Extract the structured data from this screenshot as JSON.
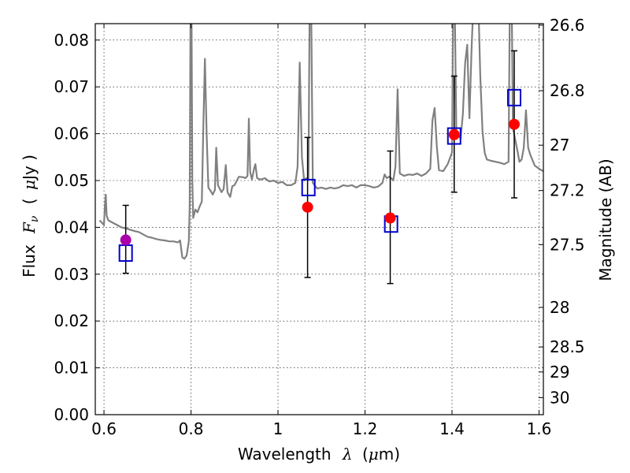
{
  "chart_data": {
    "type": "scatter",
    "xlabel": {
      "text": "Wavelength",
      "symbol": "λ",
      "unit": "(μm)",
      "unit_prefix": "(",
      "unit_mu": "μ",
      "unit_rest": "m)"
    },
    "ylabel": {
      "text": "Flux",
      "symbol": "F",
      "subscript": "ν",
      "unit_open": "(",
      "unit_mu": "μ",
      "unit_rest": "Jy )"
    },
    "y2label": "Magnitude (AB)",
    "xlim": [
      0.58,
      1.61
    ],
    "ylim": [
      0.0,
      0.0835
    ],
    "x_ticks": [
      0.6,
      0.8,
      1.0,
      1.2,
      1.4,
      1.6
    ],
    "x_tick_labels": [
      "0.6",
      "0.8",
      "1",
      "1.2",
      "1.4",
      "1.6"
    ],
    "y_ticks": [
      0.0,
      0.01,
      0.02,
      0.03,
      0.04,
      0.05,
      0.06,
      0.07,
      0.08
    ],
    "y_tick_labels": [
      "0.00",
      "0.01",
      "0.02",
      "0.03",
      "0.04",
      "0.05",
      "0.06",
      "0.07",
      "0.08"
    ],
    "y2_ticks": [
      {
        "mag": 26.6,
        "label": "26.6"
      },
      {
        "mag": 26.8,
        "label": "26.8"
      },
      {
        "mag": 27.0,
        "label": "27"
      },
      {
        "mag": 27.2,
        "label": "27.2"
      },
      {
        "mag": 27.5,
        "label": "27.5"
      },
      {
        "mag": 28.0,
        "label": "28"
      },
      {
        "mag": 28.5,
        "label": "28.5"
      },
      {
        "mag": 29.0,
        "label": "29"
      },
      {
        "mag": 30.0,
        "label": "30"
      }
    ],
    "grid": true,
    "colors": {
      "spectrum": "#808080",
      "observed": "#ff0000",
      "observed_first": "#aa00aa",
      "model": "#0000cc",
      "errorbar": "#000000"
    },
    "spectrum": [
      [
        0.59,
        0.0415
      ],
      [
        0.595,
        0.041
      ],
      [
        0.6,
        0.0405
      ],
      [
        0.602,
        0.0445
      ],
      [
        0.604,
        0.047
      ],
      [
        0.606,
        0.0425
      ],
      [
        0.61,
        0.0415
      ],
      [
        0.62,
        0.041
      ],
      [
        0.63,
        0.0405
      ],
      [
        0.64,
        0.04
      ],
      [
        0.65,
        0.0398
      ],
      [
        0.66,
        0.0395
      ],
      [
        0.67,
        0.0392
      ],
      [
        0.68,
        0.039
      ],
      [
        0.69,
        0.0385
      ],
      [
        0.7,
        0.038
      ],
      [
        0.71,
        0.0378
      ],
      [
        0.72,
        0.0375
      ],
      [
        0.73,
        0.0373
      ],
      [
        0.74,
        0.0372
      ],
      [
        0.75,
        0.037
      ],
      [
        0.76,
        0.037
      ],
      [
        0.77,
        0.0368
      ],
      [
        0.775,
        0.0372
      ],
      [
        0.78,
        0.0336
      ],
      [
        0.785,
        0.0333
      ],
      [
        0.79,
        0.034
      ],
      [
        0.795,
        0.037
      ],
      [
        0.797,
        0.045
      ],
      [
        0.799,
        0.09
      ],
      [
        0.801,
        0.09
      ],
      [
        0.803,
        0.05
      ],
      [
        0.805,
        0.042
      ],
      [
        0.81,
        0.0438
      ],
      [
        0.815,
        0.0432
      ],
      [
        0.82,
        0.0445
      ],
      [
        0.825,
        0.0455
      ],
      [
        0.828,
        0.06
      ],
      [
        0.832,
        0.076
      ],
      [
        0.836,
        0.06
      ],
      [
        0.84,
        0.0485
      ],
      [
        0.845,
        0.0478
      ],
      [
        0.85,
        0.047
      ],
      [
        0.855,
        0.048
      ],
      [
        0.858,
        0.057
      ],
      [
        0.862,
        0.049
      ],
      [
        0.87,
        0.0475
      ],
      [
        0.875,
        0.0482
      ],
      [
        0.88,
        0.0533
      ],
      [
        0.884,
        0.0475
      ],
      [
        0.89,
        0.0465
      ],
      [
        0.895,
        0.0488
      ],
      [
        0.9,
        0.049
      ],
      [
        0.91,
        0.0508
      ],
      [
        0.92,
        0.0507
      ],
      [
        0.925,
        0.0505
      ],
      [
        0.93,
        0.051
      ],
      [
        0.933,
        0.0632
      ],
      [
        0.936,
        0.0518
      ],
      [
        0.94,
        0.0502
      ],
      [
        0.945,
        0.0525
      ],
      [
        0.948,
        0.0535
      ],
      [
        0.952,
        0.0505
      ],
      [
        0.96,
        0.0502
      ],
      [
        0.97,
        0.0505
      ],
      [
        0.98,
        0.0498
      ],
      [
        0.99,
        0.05
      ],
      [
        1.0,
        0.0495
      ],
      [
        1.01,
        0.0497
      ],
      [
        1.02,
        0.049
      ],
      [
        1.03,
        0.049
      ],
      [
        1.04,
        0.0495
      ],
      [
        1.045,
        0.053
      ],
      [
        1.05,
        0.0752
      ],
      [
        1.055,
        0.055
      ],
      [
        1.06,
        0.05
      ],
      [
        1.065,
        0.0505
      ],
      [
        1.07,
        0.0502
      ],
      [
        1.073,
        0.09
      ],
      [
        1.076,
        0.09
      ],
      [
        1.08,
        0.0495
      ],
      [
        1.09,
        0.0483
      ],
      [
        1.1,
        0.0485
      ],
      [
        1.11,
        0.0482
      ],
      [
        1.12,
        0.0485
      ],
      [
        1.13,
        0.0483
      ],
      [
        1.14,
        0.0485
      ],
      [
        1.15,
        0.049
      ],
      [
        1.16,
        0.0488
      ],
      [
        1.17,
        0.049
      ],
      [
        1.18,
        0.0485
      ],
      [
        1.19,
        0.049
      ],
      [
        1.2,
        0.049
      ],
      [
        1.21,
        0.0488
      ],
      [
        1.22,
        0.0485
      ],
      [
        1.23,
        0.0487
      ],
      [
        1.24,
        0.0495
      ],
      [
        1.245,
        0.0513
      ],
      [
        1.25,
        0.0505
      ],
      [
        1.255,
        0.0508
      ],
      [
        1.26,
        0.0505
      ],
      [
        1.265,
        0.05
      ],
      [
        1.27,
        0.053
      ],
      [
        1.275,
        0.0695
      ],
      [
        1.28,
        0.0515
      ],
      [
        1.29,
        0.051
      ],
      [
        1.3,
        0.0513
      ],
      [
        1.31,
        0.0512
      ],
      [
        1.32,
        0.0515
      ],
      [
        1.33,
        0.051
      ],
      [
        1.34,
        0.0515
      ],
      [
        1.345,
        0.052
      ],
      [
        1.35,
        0.0525
      ],
      [
        1.355,
        0.0628
      ],
      [
        1.36,
        0.0655
      ],
      [
        1.365,
        0.0573
      ],
      [
        1.37,
        0.0522
      ],
      [
        1.38,
        0.052
      ],
      [
        1.39,
        0.0535
      ],
      [
        1.4,
        0.056
      ],
      [
        1.403,
        0.09
      ],
      [
        1.406,
        0.09
      ],
      [
        1.41,
        0.06
      ],
      [
        1.42,
        0.059
      ],
      [
        1.425,
        0.0643
      ],
      [
        1.43,
        0.075
      ],
      [
        1.435,
        0.079
      ],
      [
        1.44,
        0.0633
      ],
      [
        1.445,
        0.078
      ],
      [
        1.45,
        0.09
      ],
      [
        1.46,
        0.09
      ],
      [
        1.465,
        0.0722
      ],
      [
        1.47,
        0.0605
      ],
      [
        1.475,
        0.056
      ],
      [
        1.48,
        0.0545
      ],
      [
        1.49,
        0.0542
      ],
      [
        1.5,
        0.054
      ],
      [
        1.51,
        0.0538
      ],
      [
        1.52,
        0.0535
      ],
      [
        1.53,
        0.054
      ],
      [
        1.533,
        0.09
      ],
      [
        1.537,
        0.09
      ],
      [
        1.54,
        0.0612
      ],
      [
        1.55,
        0.0565
      ],
      [
        1.555,
        0.054
      ],
      [
        1.56,
        0.0545
      ],
      [
        1.565,
        0.057
      ],
      [
        1.57,
        0.065
      ],
      [
        1.575,
        0.057
      ],
      [
        1.58,
        0.0555
      ],
      [
        1.59,
        0.0532
      ],
      [
        1.6,
        0.0525
      ],
      [
        1.61,
        0.052
      ]
    ],
    "observed": [
      {
        "x": 0.65,
        "y": 0.0373,
        "err_low": 0.0302,
        "err_high": 0.0447
      },
      {
        "x": 1.068,
        "y": 0.0443,
        "err_low": 0.0293,
        "err_high": 0.0592
      },
      {
        "x": 1.258,
        "y": 0.042,
        "err_low": 0.028,
        "err_high": 0.0563
      },
      {
        "x": 1.405,
        "y": 0.0598,
        "err_low": 0.0475,
        "err_high": 0.0723
      },
      {
        "x": 1.543,
        "y": 0.062,
        "err_low": 0.0463,
        "err_high": 0.0777
      }
    ],
    "model": [
      {
        "x": 0.65,
        "y": 0.0345
      },
      {
        "x": 1.07,
        "y": 0.0485
      },
      {
        "x": 1.26,
        "y": 0.0407
      },
      {
        "x": 1.405,
        "y": 0.0595
      },
      {
        "x": 1.543,
        "y": 0.0677
      }
    ]
  }
}
